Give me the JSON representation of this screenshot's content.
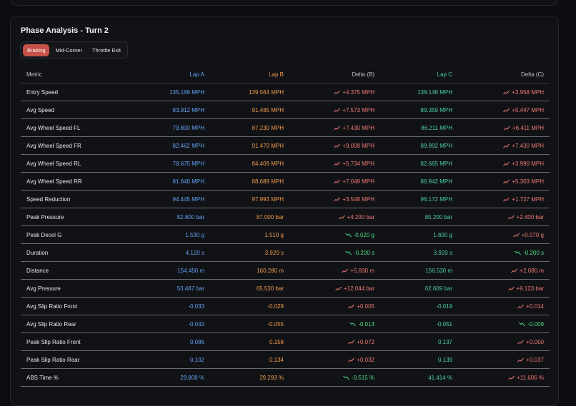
{
  "header": {
    "title": "Phase Analysis - Turn 2"
  },
  "tabs": [
    "Braking",
    "Mid-Corner",
    "Throttle Exit"
  ],
  "table": {
    "columns": [
      "Metric",
      "Lap A",
      "Lap B",
      "Delta (B)",
      "Lap C",
      "Delta (C)"
    ],
    "rows": [
      [
        "Entry Speed",
        "135.189 MPH",
        "139.564 MPH",
        "+4.375 MPH",
        "139.148 MPH",
        "+3.958 MPH"
      ],
      [
        "Avg Speed",
        "83.912 MPH",
        "91.485 MPH",
        "+7.573 MPH",
        "89.359 MPH",
        "+5.447 MPH"
      ],
      [
        "Avg Wheel Speed FL",
        "79.800 MPH",
        "87.230 MPH",
        "+7.430 MPH",
        "86.211 MPH",
        "+6.411 MPH"
      ],
      [
        "Avg Wheel Speed FR",
        "82.462 MPH",
        "91.470 MPH",
        "+9.008 MPH",
        "89.892 MPH",
        "+7.430 MPH"
      ],
      [
        "Avg Wheel Speed RL",
        "78.675 MPH",
        "84.409 MPH",
        "+5.734 MPH",
        "82.665 MPH",
        "+3.990 MPH"
      ],
      [
        "Avg Wheel Speed RR",
        "81.640 MPH",
        "88.689 MPH",
        "+7.049 MPH",
        "86.942 MPH",
        "+5.303 MPH"
      ],
      [
        "Speed Reduction",
        "94.445 MPH",
        "97.993 MPH",
        "+3.548 MPH",
        "96.172 MPH",
        "+1.727 MPH"
      ],
      [
        "Peak Pressure",
        "82.800 bar",
        "87.000 bar",
        "+4.200 bar",
        "85.200 bar",
        "+2.400 bar"
      ],
      [
        "Peak Decel G",
        "1.530 g",
        "1.510 g",
        "-0.020 g",
        "1.600 g",
        "+0.070 g"
      ],
      [
        "Duration",
        "4.120 s",
        "3.920 s",
        "-0.200 s",
        "3.920 s",
        "-0.200 s"
      ],
      [
        "Distance",
        "154.450 m",
        "160.280 m",
        "+5.830 m",
        "156.530 m",
        "+2.080 m"
      ],
      [
        "Avg Pressure",
        "53.487 bar",
        "65.530 bar",
        "+12.044 bar",
        "62.609 bar",
        "+9.123 bar"
      ],
      [
        "Avg Slip Ratio Front",
        "-0.033",
        "-0.029",
        "+0.005",
        "-0.019",
        "+0.014"
      ],
      [
        "Avg Slip Ratio Rear",
        "-0.042",
        "-0.055",
        "-0.013",
        "-0.051",
        "-0.009"
      ],
      [
        "Peak Slip Ratio Front",
        "0.086",
        "0.158",
        "+0.072",
        "0.137",
        "+0.050"
      ],
      [
        "Peak Slip Ratio Rear",
        "0.102",
        "0.134",
        "+0.032",
        "0.139",
        "+0.037"
      ],
      [
        "ABS Time %",
        "29.808 %",
        "29.293 %",
        "-0.515 %",
        "41.414 %",
        "+11.606 %"
      ]
    ]
  }
}
